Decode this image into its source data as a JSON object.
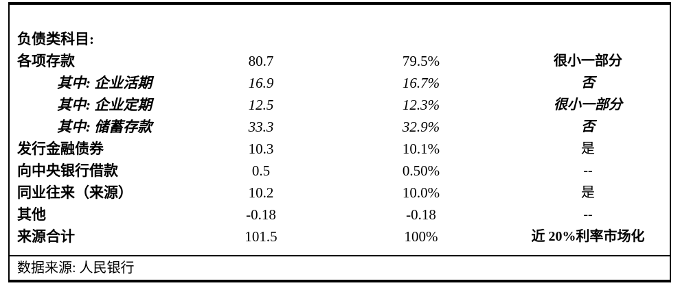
{
  "table": {
    "section_title": "负债类科目:",
    "rows": [
      {
        "label": "各项存款",
        "value": "80.7",
        "percent": "79.5%",
        "note": "很小一部分"
      },
      {
        "label": "其中: 企业活期",
        "value": "16.9",
        "percent": "16.7%",
        "note": "否"
      },
      {
        "label": "其中: 企业定期",
        "value": "12.5",
        "percent": "12.3%",
        "note": "很小一部分"
      },
      {
        "label": "其中: 储蓄存款",
        "value": "33.3",
        "percent": "32.9%",
        "note": "否"
      },
      {
        "label": "发行金融债券",
        "value": "10.3",
        "percent": "10.1%",
        "note": "是"
      },
      {
        "label": "向中央银行借款",
        "value": "0.5",
        "percent": "0.50%",
        "note": "--"
      },
      {
        "label": "同业往来（来源）",
        "value": "10.2",
        "percent": "10.0%",
        "note": "是"
      },
      {
        "label": "其他",
        "value": "-0.18",
        "percent": "-0.18",
        "note": "--"
      },
      {
        "label": "来源合计",
        "value": "101.5",
        "percent": "100%",
        "note": "近 20%利率市场化"
      }
    ],
    "footer": "数据来源: 人民银行"
  },
  "colors": {
    "text": "#000000",
    "border": "#000000",
    "background": "#ffffff"
  }
}
